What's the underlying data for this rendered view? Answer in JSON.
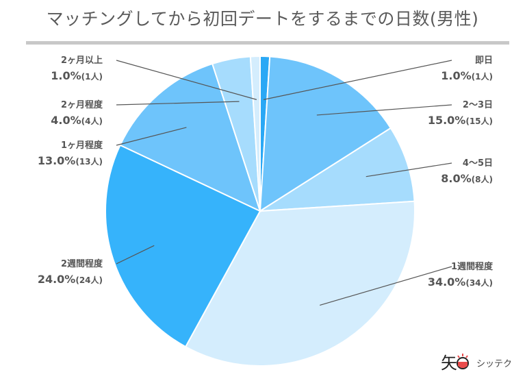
{
  "title": "マッチングしてから初回デートをするまでの日数(男性)",
  "brand": {
    "text": "シッテク"
  },
  "chart_data": {
    "type": "pie",
    "title": "マッチングしてから初回デートをするまでの日数(男性)",
    "slices": [
      {
        "label": "即日",
        "percent": "1.0%",
        "count": "(1人)",
        "value": 1,
        "color": "#2aa8f5",
        "side": "right"
      },
      {
        "label": "2〜3日",
        "percent": "15.0%",
        "count": "(15人)",
        "value": 15,
        "color": "#6ec4fb",
        "side": "right"
      },
      {
        "label": "4〜5日",
        "percent": "8.0%",
        "count": "(8人)",
        "value": 8,
        "color": "#a6dcfd",
        "side": "right"
      },
      {
        "label": "1週間程度",
        "percent": "34.0%",
        "count": "(34人)",
        "value": 34,
        "color": "#d4edfd",
        "side": "right"
      },
      {
        "label": "2週間程度",
        "percent": "24.0%",
        "count": "(24人)",
        "value": 24,
        "color": "#36b3fb",
        "side": "left"
      },
      {
        "label": "1ヶ月程度",
        "percent": "13.0%",
        "count": "(13人)",
        "value": 13,
        "color": "#6ec4fb",
        "side": "left"
      },
      {
        "label": "2ヶ月程度",
        "percent": "4.0%",
        "count": "(4人)",
        "value": 4,
        "color": "#a6dcfd",
        "side": "left"
      },
      {
        "label": "2ヶ月以上",
        "percent": "1.0%",
        "count": "(1人)",
        "value": 1,
        "color": "#d4edfd",
        "side": "left"
      }
    ]
  }
}
